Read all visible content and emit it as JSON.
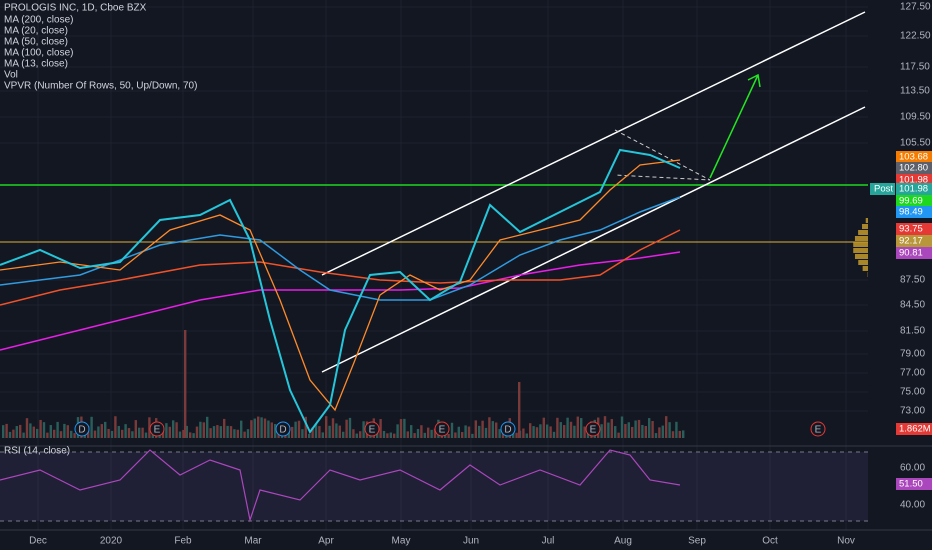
{
  "header": {
    "title": "PROLOGIS INC, 1D, Cboe BZX",
    "indicators": [
      "MA (200, close)",
      "MA (20, close)",
      "MA (50, close)",
      "MA (100, close)",
      "MA (13, close)",
      "Vol",
      "VPVR (Number Of Rows, 50, Up/Down, 70)"
    ]
  },
  "price_axis": [
    "127.50",
    "122.50",
    "117.50",
    "113.50",
    "109.50",
    "105.50",
    "87.50",
    "84.50",
    "81.50",
    "79.00",
    "77.00",
    "75.00",
    "73.00"
  ],
  "price_tags": [
    "103.68",
    "102.80",
    "101.98",
    "Post",
    "101.98",
    "99.69",
    "98.49",
    "93.75",
    "92.17",
    "90.81",
    "1.862M"
  ],
  "time_axis": [
    "Dec",
    "2020",
    "Feb",
    "Mar",
    "Apr",
    "May",
    "Jun",
    "Jul",
    "Aug",
    "Sep",
    "Oct",
    "Nov"
  ],
  "events": [
    "D",
    "E",
    "D",
    "E",
    "E",
    "D",
    "E",
    "E"
  ],
  "rsi": {
    "title": "RSI (14, close)",
    "axis": [
      "60.00",
      "40.00"
    ],
    "tag": "51.50"
  }
}
